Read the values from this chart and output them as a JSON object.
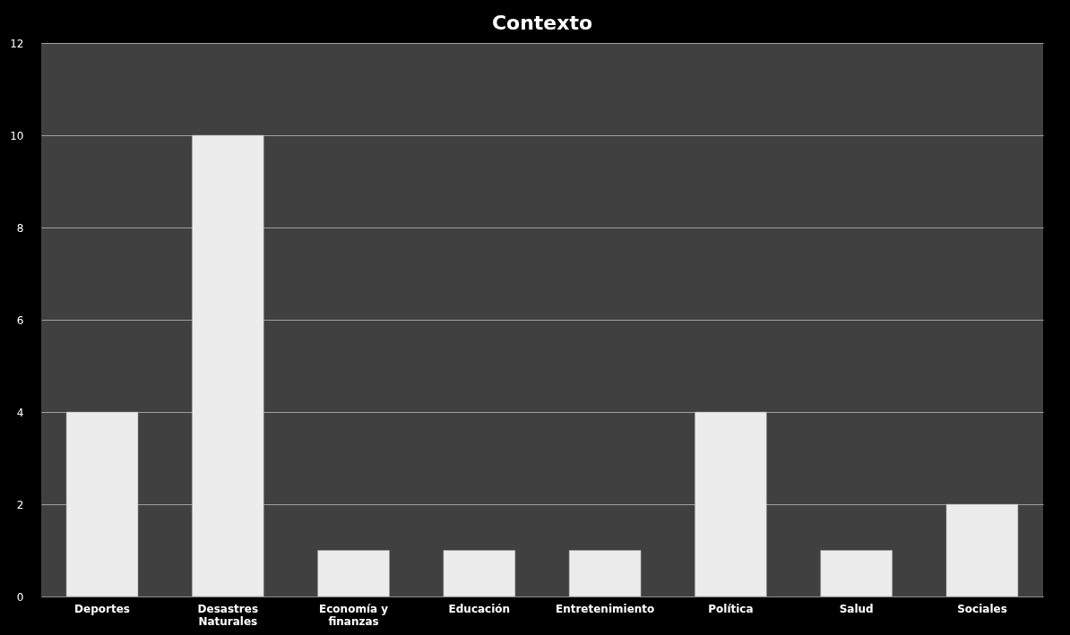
{
  "chart_data": {
    "type": "bar",
    "title": "Contexto",
    "categories": [
      "Deportes",
      "Desastres Naturales",
      "Economía y finanzas",
      "Educación",
      "Entretenimiento",
      "Política",
      "Salud",
      "Sociales"
    ],
    "values": [
      4,
      10,
      1,
      1,
      1,
      4,
      1,
      2
    ],
    "color": "#ececec",
    "ylim": [
      0,
      12
    ],
    "yticks": [
      0,
      2,
      4,
      6,
      8,
      10,
      12
    ],
    "grid": "y"
  }
}
